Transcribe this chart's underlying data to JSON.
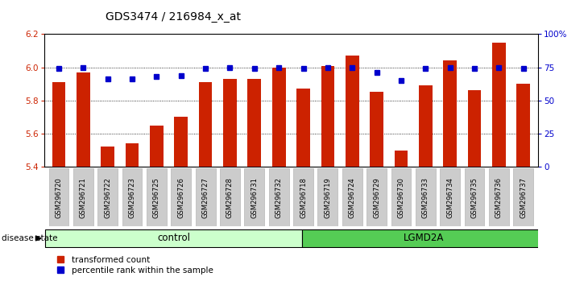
{
  "title": "GDS3474 / 216984_x_at",
  "samples": [
    "GSM296720",
    "GSM296721",
    "GSM296722",
    "GSM296723",
    "GSM296725",
    "GSM296726",
    "GSM296727",
    "GSM296728",
    "GSM296731",
    "GSM296732",
    "GSM296718",
    "GSM296719",
    "GSM296724",
    "GSM296729",
    "GSM296730",
    "GSM296733",
    "GSM296734",
    "GSM296735",
    "GSM296736",
    "GSM296737"
  ],
  "bar_values": [
    5.91,
    5.97,
    5.52,
    5.54,
    5.65,
    5.7,
    5.91,
    5.93,
    5.93,
    6.0,
    5.87,
    6.01,
    6.07,
    5.85,
    5.5,
    5.89,
    6.04,
    5.86,
    6.15,
    5.9
  ],
  "percentile_values": [
    74,
    75,
    66,
    66,
    68,
    69,
    74,
    75,
    74,
    75,
    74,
    75,
    75,
    71,
    65,
    74,
    75,
    74,
    75,
    74
  ],
  "control_count": 10,
  "lgmd2a_count": 10,
  "bar_color": "#cc2200",
  "dot_color": "#0000cc",
  "ymin": 5.4,
  "ymax": 6.2,
  "yticks": [
    5.4,
    5.6,
    5.8,
    6.0,
    6.2
  ],
  "right_yticks": [
    0,
    25,
    50,
    75,
    100
  ],
  "right_yticklabels": [
    "0",
    "25",
    "50",
    "75",
    "100%"
  ],
  "control_label": "control",
  "lgmd2a_label": "LGMD2A",
  "disease_state_label": "disease state",
  "legend_bar_label": "transformed count",
  "legend_dot_label": "percentile rank within the sample",
  "control_bg_color": "#ccffcc",
  "lgmd2a_bg_color": "#55cc55",
  "ticklabel_bg_color": "#cccccc",
  "bar_color_red": "#cc2200",
  "dot_color_blue": "#0000cc"
}
